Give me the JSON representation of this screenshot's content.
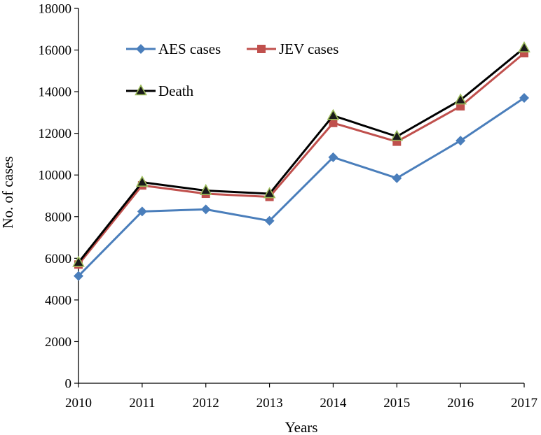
{
  "chart_data": {
    "type": "line",
    "title": "",
    "xlabel": "Years",
    "ylabel": "No. of cases",
    "categories": [
      "2010",
      "2011",
      "2012",
      "2013",
      "2014",
      "2015",
      "2016",
      "2017"
    ],
    "yticks": [
      "0",
      "2000",
      "4000",
      "6000",
      "8000",
      "10000",
      "12000",
      "14000",
      "16000",
      "18000"
    ],
    "ylim": [
      0,
      18000
    ],
    "grid": false,
    "legend_position": "top-left",
    "series": [
      {
        "name": "AES cases",
        "color": "#4a7ebb",
        "marker": "diamond",
        "values": [
          5150,
          8250,
          8350,
          7800,
          10850,
          9850,
          11650,
          13700
        ]
      },
      {
        "name": "JEV cases",
        "color": "#c0504d",
        "marker": "square",
        "values": [
          5700,
          9500,
          9100,
          8950,
          12500,
          11600,
          13300,
          15850
        ]
      },
      {
        "name": "Death",
        "color": "#000000",
        "marker": "triangle",
        "marker_fill": "#1a1a1a",
        "marker_edge": "#9bbb59",
        "values": [
          5800,
          9650,
          9250,
          9100,
          12850,
          11850,
          13600,
          16100
        ]
      }
    ]
  }
}
